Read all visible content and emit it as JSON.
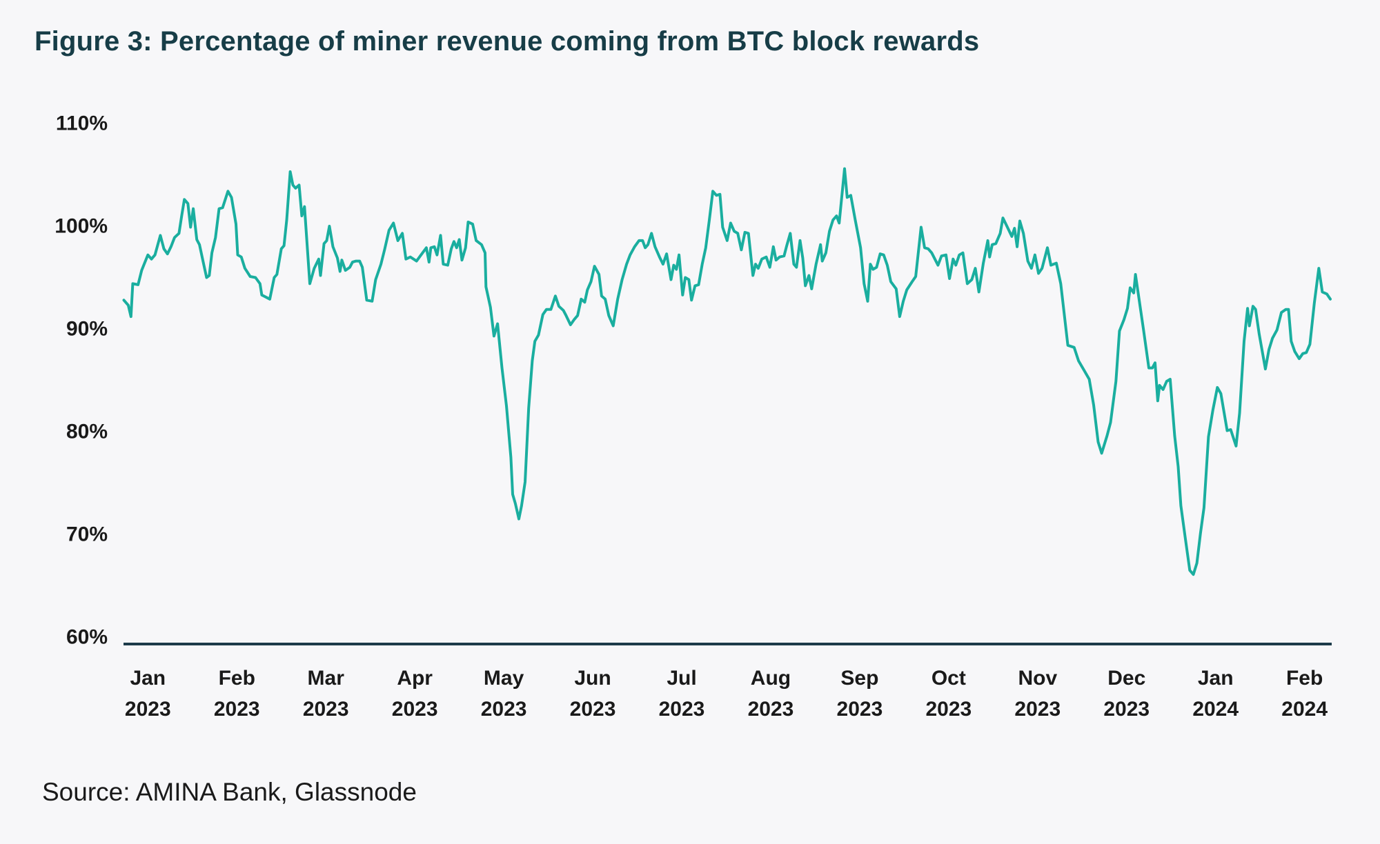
{
  "chart_data": {
    "type": "line",
    "title": "Figure 3: Percentage of miner revenue coming from BTC block rewards",
    "source": "Source: AMINA Bank, Glassnode",
    "xlabel": "",
    "ylabel": "",
    "x_units": "months since Jan 2023",
    "ylim": [
      60,
      110
    ],
    "yticks": [
      60,
      70,
      80,
      90,
      100,
      110
    ],
    "ytick_labels": [
      "60%",
      "70%",
      "80%",
      "90%",
      "100%",
      "110%"
    ],
    "xtick_labels": [
      [
        "Jan",
        "2023"
      ],
      [
        "Feb",
        "2023"
      ],
      [
        "Mar",
        "2023"
      ],
      [
        "Apr",
        "2023"
      ],
      [
        "May",
        "2023"
      ],
      [
        "Jun",
        "2023"
      ],
      [
        "Jul",
        "2023"
      ],
      [
        "Aug",
        "2023"
      ],
      [
        "Sep",
        "2023"
      ],
      [
        "Oct",
        "2023"
      ],
      [
        "Nov",
        "2023"
      ],
      [
        "Dec",
        "2023"
      ],
      [
        "Jan",
        "2024"
      ],
      [
        "Feb",
        "2024"
      ]
    ],
    "grid": false,
    "legend": "none",
    "colors": {
      "line": "#1aae9f",
      "axis": "#1d3b4a",
      "title": "#173d47"
    },
    "series": [
      {
        "name": "Block reward share of miner revenue",
        "x": [
          -0.27,
          -0.22,
          -0.19,
          -0.17,
          -0.11,
          -0.07,
          0,
          0.04,
          0.08,
          0.14,
          0.18,
          0.22,
          0.26,
          0.3,
          0.35,
          0.38,
          0.41,
          0.45,
          0.48,
          0.51,
          0.55,
          0.58,
          0.62,
          0.66,
          0.69,
          0.72,
          0.76,
          0.8,
          0.84,
          0.9,
          0.94,
          0.99,
          1.01,
          1.05,
          1.09,
          1.15,
          1.21,
          1.26,
          1.28,
          1.37,
          1.42,
          1.45,
          1.5,
          1.53,
          1.56,
          1.6,
          1.63,
          1.66,
          1.7,
          1.73,
          1.76,
          1.82,
          1.87,
          1.92,
          1.94,
          1.98,
          2.01,
          2.04,
          2.08,
          2.13,
          2.16,
          2.18,
          2.22,
          2.27,
          2.3,
          2.34,
          2.38,
          2.41,
          2.46,
          2.52,
          2.56,
          2.62,
          2.66,
          2.71,
          2.76,
          2.81,
          2.86,
          2.9,
          2.95,
          3.02,
          3.07,
          3.13,
          3.16,
          3.18,
          3.22,
          3.25,
          3.29,
          3.32,
          3.37,
          3.41,
          3.44,
          3.47,
          3.5,
          3.53,
          3.57,
          3.6,
          3.65,
          3.69,
          3.75,
          3.79,
          3.8,
          3.85,
          3.89,
          3.93,
          3.98,
          4.03,
          4.08,
          4.1,
          4.13,
          4.17,
          4.2,
          4.24,
          4.28,
          4.32,
          4.35,
          4.39,
          4.44,
          4.48,
          4.53,
          4.58,
          4.62,
          4.67,
          4.7,
          4.75,
          4.79,
          4.83,
          4.87,
          4.91,
          4.94,
          4.98,
          5.02,
          5.07,
          5.1,
          5.14,
          5.18,
          5.23,
          5.28,
          5.33,
          5.38,
          5.42,
          5.47,
          5.52,
          5.56,
          5.59,
          5.62,
          5.66,
          5.7,
          5.75,
          5.79,
          5.83,
          5.88,
          5.91,
          5.94,
          5.97,
          6.01,
          6.04,
          6.08,
          6.11,
          6.15,
          6.19,
          6.23,
          6.27,
          6.31,
          6.35,
          6.39,
          6.43,
          6.46,
          6.51,
          6.55,
          6.59,
          6.63,
          6.67,
          6.71,
          6.75,
          6.8,
          6.83,
          6.86,
          6.9,
          6.95,
          6.99,
          7.03,
          7.06,
          7.1,
          7.15,
          7.18,
          7.22,
          7.26,
          7.29,
          7.33,
          7.36,
          7.39,
          7.43,
          7.46,
          7.51,
          7.56,
          7.58,
          7.62,
          7.66,
          7.7,
          7.74,
          7.77,
          7.83,
          7.86,
          7.9,
          7.95,
          8.01,
          8.05,
          8.09,
          8.12,
          8.15,
          8.19,
          8.23,
          8.27,
          8.31,
          8.35,
          8.41,
          8.45,
          8.49,
          8.53,
          8.59,
          8.63,
          8.69,
          8.73,
          8.77,
          8.81,
          8.88,
          8.92,
          8.97,
          9.01,
          9.05,
          9.08,
          9.12,
          9.16,
          9.21,
          9.26,
          9.3,
          9.34,
          9.39,
          9.44,
          9.46,
          9.49,
          9.53,
          9.58,
          9.61,
          9.66,
          9.71,
          9.74,
          9.77,
          9.8,
          9.84,
          9.89,
          9.93,
          9.97,
          10.01,
          10.05,
          10.11,
          10.15,
          10.21,
          10.26,
          10.34,
          10.41,
          10.46,
          10.52,
          10.58,
          10.63,
          10.68,
          10.72,
          10.78,
          10.82,
          10.88,
          10.92,
          10.97,
          11.01,
          11.04,
          11.08,
          11.1,
          11.16,
          11.19,
          11.25,
          11.29,
          11.32,
          11.35,
          11.37,
          11.41,
          11.45,
          11.49,
          11.54,
          11.58,
          11.61,
          11.66,
          11.71,
          11.75,
          11.79,
          11.83,
          11.87,
          11.92,
          11.97,
          12.02,
          12.06,
          12.13,
          12.17,
          12.23,
          12.27,
          12.32,
          12.36,
          12.38,
          12.42,
          12.45,
          12.49,
          12.56,
          12.6,
          12.64,
          12.69,
          12.74,
          12.79,
          12.82,
          12.85,
          12.89,
          12.94,
          12.98,
          13.02,
          13.06,
          13.11,
          13.16,
          13.2,
          13.25,
          13.29
        ],
        "y": [
          92.7,
          92.2,
          91.1,
          94.3,
          94.2,
          95.6,
          97.1,
          96.7,
          97.1,
          99.0,
          97.7,
          97.2,
          97.9,
          98.8,
          99.2,
          100.9,
          102.5,
          102.1,
          99.8,
          101.6,
          98.6,
          98.1,
          96.5,
          94.9,
          95.1,
          97.3,
          98.8,
          101.6,
          101.7,
          103.3,
          102.7,
          100.1,
          97.1,
          96.9,
          95.8,
          95.0,
          94.9,
          94.3,
          93.2,
          92.8,
          94.9,
          95.2,
          97.7,
          98.0,
          100.5,
          105.2,
          103.9,
          103.6,
          103.9,
          100.9,
          101.8,
          94.3,
          95.8,
          96.7,
          95.1,
          98.2,
          98.5,
          99.9,
          97.9,
          96.8,
          95.5,
          96.6,
          95.6,
          95.9,
          96.4,
          96.5,
          96.5,
          95.9,
          92.7,
          92.6,
          94.7,
          96.2,
          97.6,
          99.5,
          100.2,
          98.5,
          99.2,
          96.7,
          96.9,
          96.5,
          97.1,
          97.8,
          96.4,
          97.8,
          97.9,
          97.1,
          99.0,
          96.2,
          96.1,
          97.7,
          98.4,
          97.8,
          98.6,
          96.6,
          97.8,
          100.3,
          100.1,
          98.5,
          98.1,
          97.3,
          94.0,
          92.0,
          89.2,
          90.4,
          86.1,
          82.4,
          77.4,
          73.8,
          72.9,
          71.4,
          72.7,
          75.0,
          82.2,
          86.8,
          88.7,
          89.3,
          91.3,
          91.8,
          91.8,
          93.1,
          92.1,
          91.7,
          91.2,
          90.3,
          90.8,
          91.2,
          92.8,
          92.5,
          93.7,
          94.5,
          96.0,
          95.2,
          93.1,
          92.8,
          91.2,
          90.2,
          92.8,
          94.7,
          96.2,
          97.1,
          97.9,
          98.5,
          98.5,
          97.8,
          98.1,
          99.2,
          97.9,
          96.9,
          96.2,
          97.2,
          94.7,
          96.1,
          95.7,
          97.1,
          93.2,
          94.9,
          94.7,
          92.7,
          94.1,
          94.2,
          96.2,
          97.8,
          100.5,
          103.3,
          102.9,
          103.0,
          99.8,
          98.5,
          100.2,
          99.4,
          99.2,
          97.6,
          99.3,
          99.2,
          95.1,
          96.2,
          95.8,
          96.7,
          96.9,
          95.9,
          97.9,
          96.6,
          96.9,
          97.0,
          98.0,
          99.2,
          96.2,
          95.9,
          98.5,
          96.8,
          94.1,
          95.1,
          93.8,
          96.2,
          98.1,
          96.5,
          97.3,
          99.4,
          100.5,
          100.9,
          100.2,
          105.5,
          102.7,
          102.9,
          100.5,
          97.8,
          94.3,
          92.6,
          96.2,
          95.7,
          95.9,
          97.2,
          97.1,
          96.1,
          94.5,
          93.8,
          91.1,
          92.6,
          93.7,
          94.5,
          95.0,
          99.8,
          97.8,
          97.7,
          97.3,
          96.1,
          97.0,
          97.1,
          94.8,
          96.7,
          96.1,
          97.1,
          97.3,
          94.3,
          94.7,
          95.8,
          93.5,
          96.3,
          98.5,
          96.9,
          98.1,
          98.2,
          99.2,
          100.7,
          99.8,
          98.9,
          99.7,
          97.9,
          100.4,
          99.2,
          96.5,
          95.8,
          97.1,
          95.3,
          95.8,
          97.8,
          96.1,
          96.3,
          94.3,
          88.3,
          88.1,
          86.8,
          85.9,
          85.0,
          82.5,
          78.9,
          77.8,
          79.5,
          80.8,
          84.8,
          89.7,
          90.8,
          91.9,
          93.9,
          93.4,
          95.2,
          91.6,
          89.8,
          86.1,
          86.1,
          86.6,
          82.9,
          84.4,
          84.0,
          84.8,
          85.0,
          79.5,
          76.5,
          72.7,
          69.5,
          66.4,
          66.0,
          67.1,
          70.0,
          72.5,
          79.4,
          82.0,
          84.2,
          83.6,
          80.0,
          80.1,
          78.5,
          81.7,
          88.7,
          91.9,
          90.2,
          92.1,
          91.8,
          89.4,
          86.0,
          87.9,
          89.0,
          89.8,
          91.5,
          91.8,
          91.8,
          88.7,
          87.7,
          87.0,
          87.5,
          87.6,
          88.4,
          92.4,
          95.8,
          93.5,
          93.3,
          92.8
        ]
      }
    ]
  }
}
